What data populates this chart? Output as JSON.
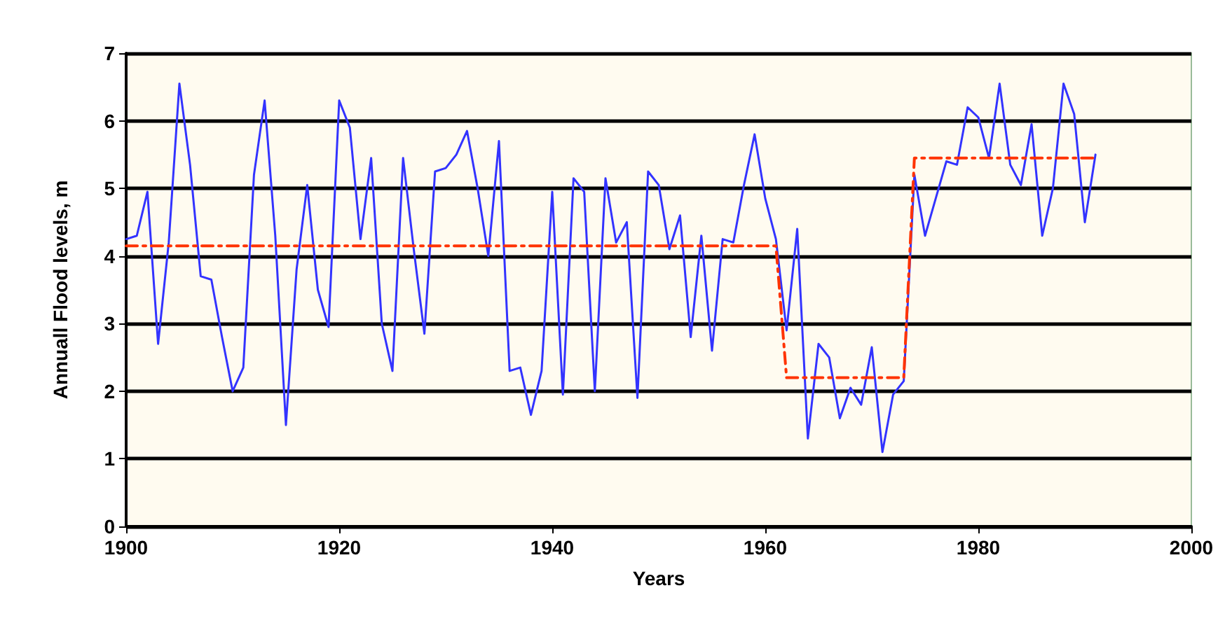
{
  "chart_data": {
    "type": "line",
    "xlabel": "Years",
    "ylabel": "Annuall Flood levels, m",
    "xlim": [
      1900,
      2000
    ],
    "xticks": [
      1900,
      1920,
      1940,
      1960,
      1980,
      2000
    ],
    "ylim": [
      0,
      7
    ],
    "yticks": [
      0,
      1,
      2,
      3,
      4,
      5,
      6,
      7
    ],
    "grid": "y",
    "marker": "none",
    "series": [
      {
        "color": "#3333ff",
        "line_style": "solid",
        "x": [
          1900,
          1901,
          1902,
          1903,
          1904,
          1905,
          1906,
          1907,
          1908,
          1909,
          1910,
          1911,
          1912,
          1913,
          1914,
          1915,
          1916,
          1917,
          1918,
          1919,
          1920,
          1921,
          1922,
          1923,
          1924,
          1925,
          1926,
          1927,
          1928,
          1929,
          1930,
          1931,
          1932,
          1933,
          1934,
          1935,
          1936,
          1937,
          1938,
          1939,
          1940,
          1941,
          1942,
          1943,
          1944,
          1945,
          1946,
          1947,
          1948,
          1949,
          1950,
          1951,
          1952,
          1953,
          1954,
          1955,
          1956,
          1957,
          1958,
          1959,
          1960,
          1961,
          1962,
          1963,
          1964,
          1965,
          1966,
          1967,
          1968,
          1969,
          1970,
          1971,
          1972,
          1973,
          1974,
          1975,
          1976,
          1977,
          1978,
          1979,
          1980,
          1981,
          1982,
          1983,
          1984,
          1985,
          1986,
          1987,
          1988,
          1989,
          1990,
          1991
        ],
        "values": [
          4.25,
          4.3,
          4.95,
          2.7,
          4.2,
          6.55,
          5.35,
          3.7,
          3.65,
          2.8,
          2.0,
          2.35,
          5.2,
          6.3,
          4.3,
          1.5,
          3.8,
          5.05,
          3.5,
          2.95,
          6.3,
          5.9,
          4.25,
          5.45,
          3.0,
          2.3,
          5.45,
          4.1,
          2.85,
          5.25,
          5.3,
          5.5,
          5.85,
          5.0,
          4.0,
          5.7,
          2.3,
          2.35,
          1.65,
          2.3,
          4.95,
          1.95,
          5.15,
          4.95,
          2.0,
          5.15,
          4.2,
          4.5,
          1.9,
          5.25,
          5.05,
          4.1,
          4.6,
          2.8,
          4.3,
          2.6,
          4.25,
          4.2,
          5.05,
          5.8,
          4.85,
          4.25,
          2.9,
          4.4,
          1.3,
          2.7,
          2.5,
          1.6,
          2.05,
          1.8,
          2.65,
          1.1,
          1.95,
          2.15,
          5.2,
          4.3,
          4.85,
          5.4,
          5.35,
          6.2,
          6.05,
          5.45,
          6.55,
          5.35,
          5.05,
          5.95,
          4.3,
          5.0,
          6.55,
          6.1,
          4.5,
          5.5
        ]
      },
      {
        "color": "#ff3300",
        "line_style": "dashed",
        "x": [
          1900,
          1961,
          1962,
          1973,
          1974,
          1991
        ],
        "values": [
          4.15,
          4.15,
          2.2,
          2.2,
          5.45,
          5.45
        ]
      }
    ]
  }
}
